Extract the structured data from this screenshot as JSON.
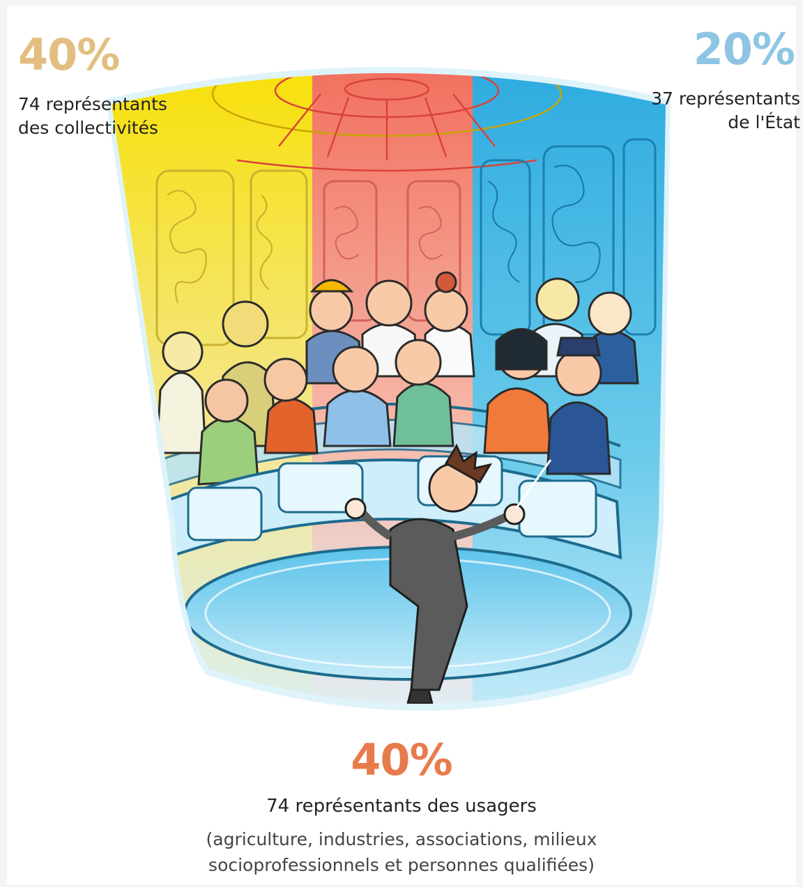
{
  "segments": {
    "collectivites": {
      "percent": "40%",
      "line1": "74 représentants",
      "line2": "des collectivités",
      "color": "#e2bf80"
    },
    "etat": {
      "percent": "20%",
      "line1": "37 représentants",
      "line2": "de l'État",
      "color": "#8ec5e4"
    },
    "usagers": {
      "percent": "40%",
      "line1": "74 représentants des usagers",
      "note1": "(agriculture, industries, associations, milieux",
      "note2": "socioprofessionnels et personnes qualifiées)",
      "color": "#e87b4c"
    }
  },
  "illustration": {
    "subject": "assembly-hall-with-conductor",
    "palette": {
      "yellow": "#f7d51c",
      "red": "#f2715f",
      "blue": "#39b5e0",
      "light_blue": "#bfe7f8"
    }
  }
}
